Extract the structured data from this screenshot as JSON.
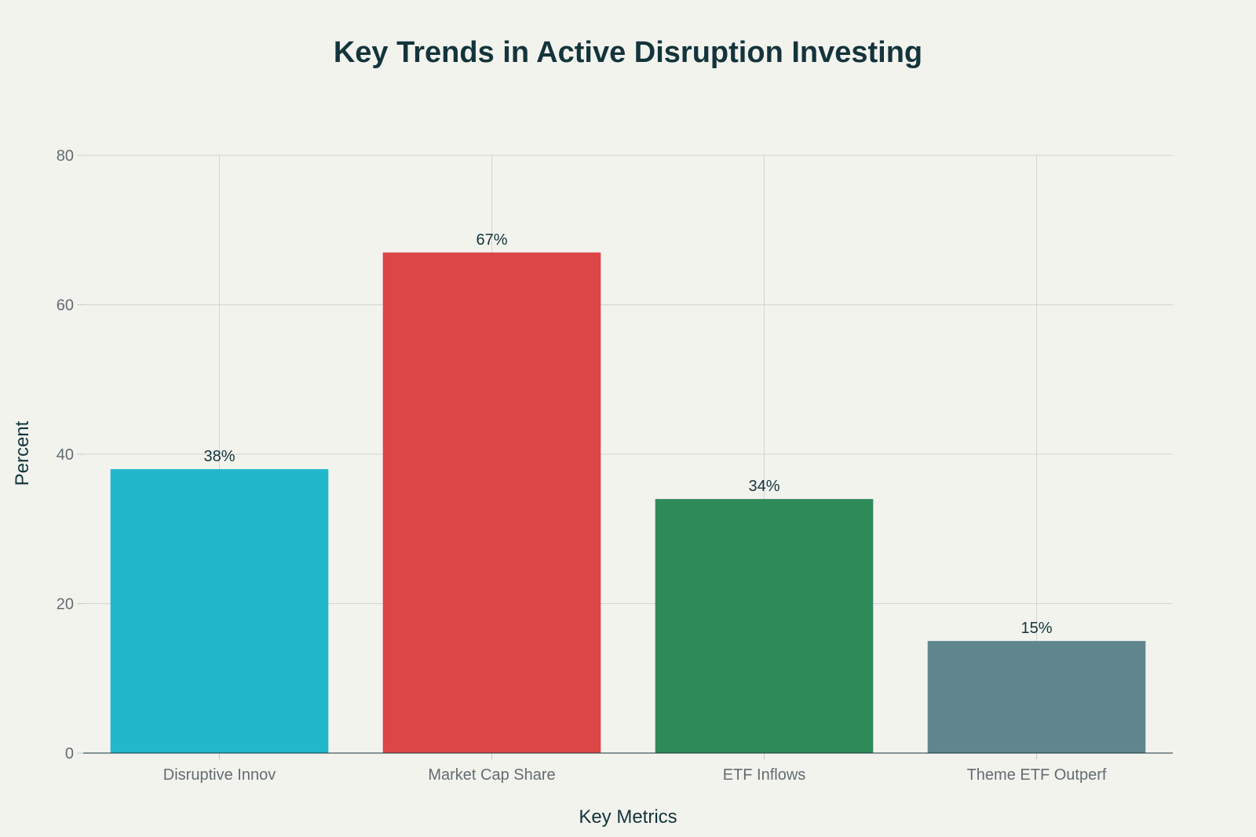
{
  "chart_data": {
    "type": "bar",
    "title": "Key Trends in Active Disruption Investing",
    "xlabel": "Key Metrics",
    "ylabel": "Percent",
    "categories": [
      "Disruptive Innov",
      "Market Cap Share",
      "ETF Inflows",
      "Theme ETF Outperf"
    ],
    "values": [
      38,
      67,
      34,
      15
    ],
    "data_labels": [
      "38%",
      "67%",
      "34%",
      "15%"
    ],
    "colors": [
      "#21b8cc",
      "#dc4647",
      "#2f8a59",
      "#5f868d"
    ],
    "ylim": [
      0,
      80
    ],
    "yticks": [
      0,
      20,
      40,
      60,
      80
    ],
    "grid": true,
    "legend": "none"
  }
}
